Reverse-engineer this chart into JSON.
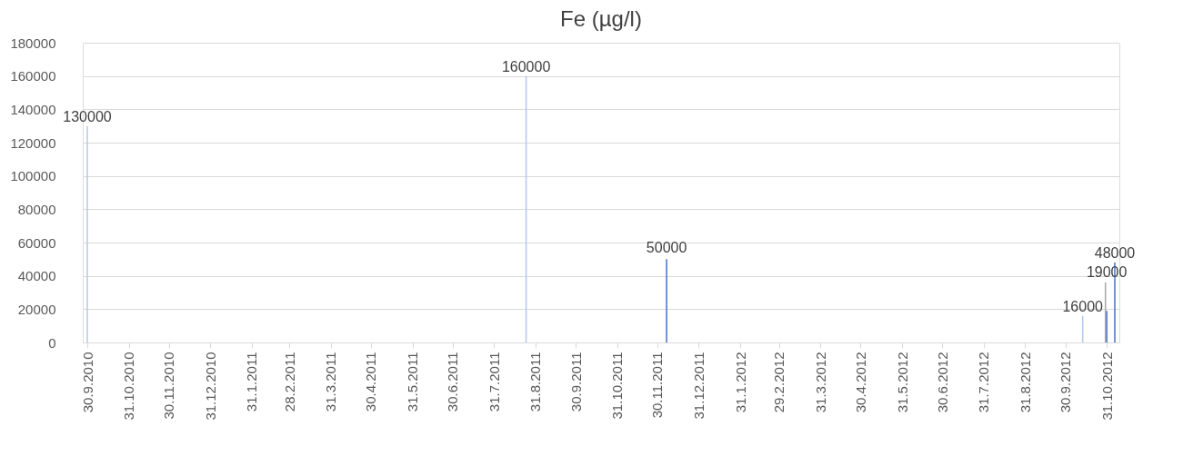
{
  "chart_data": {
    "type": "bar",
    "title": "Fe (µg/l)",
    "x": [
      "2010-09-30",
      "2011-08-24",
      "2011-12-07",
      "2012-10-13",
      "2012-10-30",
      "2012-10-31",
      "2012-11-06"
    ],
    "values": [
      130000,
      160000,
      50000,
      16000,
      36000,
      19000,
      48000
    ],
    "colors": [
      "#b4c7e7",
      "#b4c7e7",
      "#4472c4",
      "#b4c7e7",
      "#a5a5a5",
      "#4472c4",
      "#4472c4"
    ],
    "value_labels": [
      "130000",
      "160000",
      "50000",
      "16000",
      null,
      "19000",
      "48000"
    ],
    "xlim": [
      "2010-09-30",
      "2012-11-06"
    ],
    "xticks": [
      {
        "value": "2010-09-30",
        "label": "30.9.2010"
      },
      {
        "value": "2010-10-31",
        "label": "31.10.2010"
      },
      {
        "value": "2010-11-30",
        "label": "30.11.2010"
      },
      {
        "value": "2010-12-31",
        "label": "31.12.2010"
      },
      {
        "value": "2011-01-31",
        "label": "31.1.2011"
      },
      {
        "value": "2011-02-28",
        "label": "28.2.2011"
      },
      {
        "value": "2011-03-31",
        "label": "31.3.2011"
      },
      {
        "value": "2011-04-30",
        "label": "30.4.2011"
      },
      {
        "value": "2011-05-31",
        "label": "31.5.2011"
      },
      {
        "value": "2011-06-30",
        "label": "30.6.2011"
      },
      {
        "value": "2011-07-31",
        "label": "31.7.2011"
      },
      {
        "value": "2011-08-31",
        "label": "31.8.2011"
      },
      {
        "value": "2011-09-30",
        "label": "30.9.2011"
      },
      {
        "value": "2011-10-31",
        "label": "31.10.2011"
      },
      {
        "value": "2011-11-30",
        "label": "30.11.2011"
      },
      {
        "value": "2011-12-31",
        "label": "31.12.2011"
      },
      {
        "value": "2012-01-31",
        "label": "31.1.2012"
      },
      {
        "value": "2012-02-29",
        "label": "29.2.2012"
      },
      {
        "value": "2012-03-31",
        "label": "31.3.2012"
      },
      {
        "value": "2012-04-30",
        "label": "30.4.2012"
      },
      {
        "value": "2012-05-31",
        "label": "31.5.2012"
      },
      {
        "value": "2012-06-30",
        "label": "30.6.2012"
      },
      {
        "value": "2012-07-31",
        "label": "31.7.2012"
      },
      {
        "value": "2012-08-31",
        "label": "31.8.2012"
      },
      {
        "value": "2012-09-30",
        "label": "30.9.2012"
      },
      {
        "value": "2012-10-31",
        "label": "31.10.2012"
      }
    ],
    "ylim": [
      0,
      180000
    ],
    "yticks": [
      0,
      20000,
      40000,
      60000,
      80000,
      100000,
      120000,
      140000,
      160000,
      180000
    ],
    "grid": "y"
  }
}
